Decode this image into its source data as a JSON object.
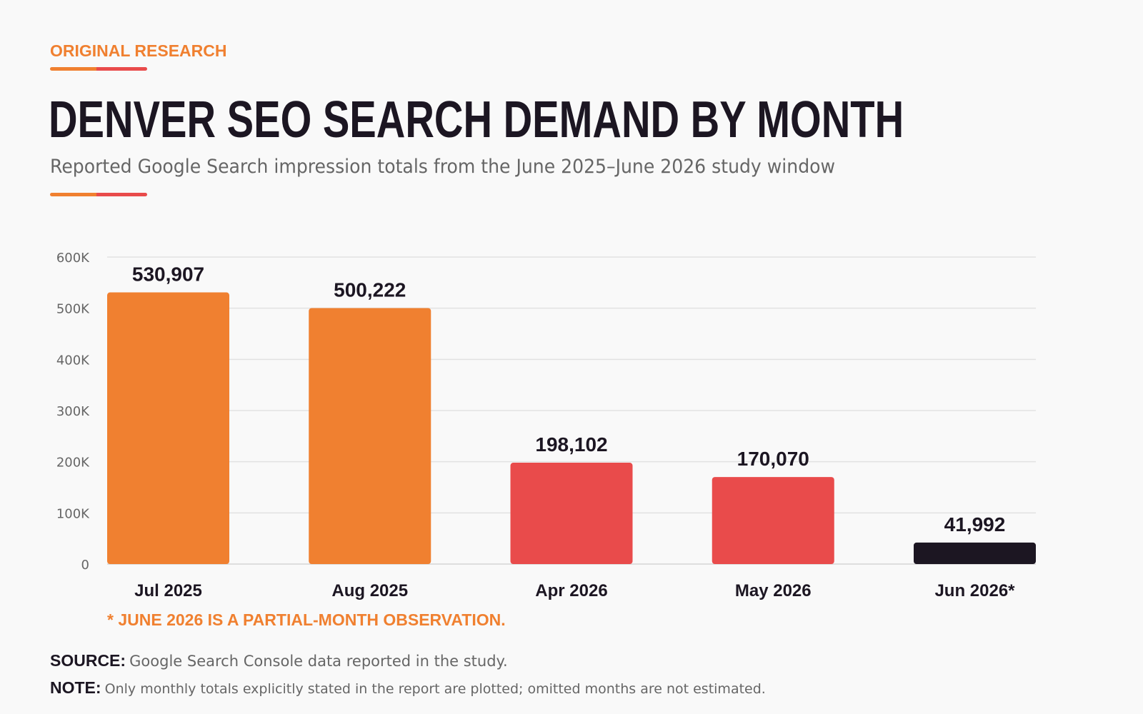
{
  "header": {
    "eyebrow": "ORIGINAL RESEARCH",
    "title": "DENVER SEO SEARCH DEMAND BY MONTH",
    "subtitle": "Reported Google Search impression totals from the June 2025–June 2026 study window"
  },
  "colors": {
    "accent_orange": "#f08030",
    "accent_red": "#e94b4b",
    "dark": "#1c1622",
    "gridline": "#e2e2e2"
  },
  "chart_data": {
    "type": "bar",
    "categories": [
      "Jul 2025",
      "Aug 2025",
      "Apr 2026",
      "May 2026",
      "Jun 2026*"
    ],
    "values": [
      530907,
      500222,
      198102,
      170070,
      41992
    ],
    "value_labels": [
      "530,907",
      "500,222",
      "198,102",
      "170,070",
      "41,992"
    ],
    "bar_colors": [
      "#f08030",
      "#f08030",
      "#e94b4b",
      "#e94b4b",
      "#1c1622"
    ],
    "ylim": [
      0,
      600000
    ],
    "yticks": [
      0,
      100000,
      200000,
      300000,
      400000,
      500000,
      600000
    ],
    "ytick_labels": [
      "0",
      "100K",
      "200K",
      "300K",
      "400K",
      "500K",
      "600K"
    ],
    "grid": true,
    "title": "DENVER SEO SEARCH DEMAND BY MONTH"
  },
  "footnote": "* JUNE 2026 IS A PARTIAL-MONTH OBSERVATION.",
  "source": {
    "label": "SOURCE:",
    "text": "Google Search Console data reported in the study."
  },
  "note": {
    "label": "NOTE:",
    "text": "Only monthly totals explicitly stated in the report are plotted; omitted months are not estimated."
  }
}
